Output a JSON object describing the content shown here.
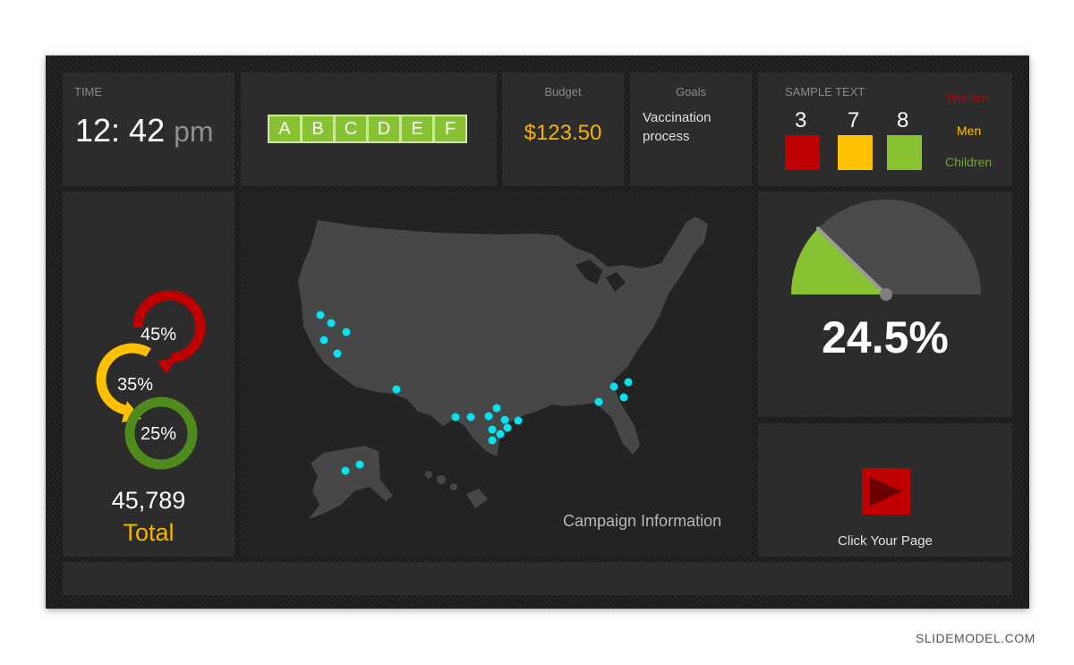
{
  "time": {
    "caption": "TIME",
    "hours_minutes": "12: 42",
    "ampm": "pm"
  },
  "letters": [
    "A",
    "B",
    "C",
    "D",
    "E",
    "F"
  ],
  "budget": {
    "caption": "Budget",
    "value": "$123.50"
  },
  "goals": {
    "caption": "Goals",
    "text": "Vaccination process"
  },
  "sample": {
    "caption": "SAMPLE TEXT",
    "items": [
      {
        "count": "3",
        "color": "#c00000"
      },
      {
        "count": "7",
        "color": "#ffc000"
      },
      {
        "count": "8",
        "color": "#86c232"
      }
    ],
    "legend": [
      {
        "label": "Women",
        "color": "#c00000"
      },
      {
        "label": "Men",
        "color": "#ffc000"
      },
      {
        "label": "Children",
        "color": "#6ea82a"
      }
    ]
  },
  "rings": [
    {
      "label": "45%",
      "color": "#c00000"
    },
    {
      "label": "35%",
      "color": "#ffc000"
    },
    {
      "label": "25%",
      "color": "#4f8a1c"
    }
  ],
  "total": {
    "value": "45,789",
    "label": "Total"
  },
  "map": {
    "caption": "Campaign Information",
    "marker_color": "#00e5f0"
  },
  "gauge": {
    "value_text": "24.5%",
    "fraction": 0.245,
    "fill_color": "#86c232"
  },
  "link": {
    "label": "Click Your Page",
    "icon": "play-icon"
  },
  "watermark": "SLIDEMODEL.COM"
}
